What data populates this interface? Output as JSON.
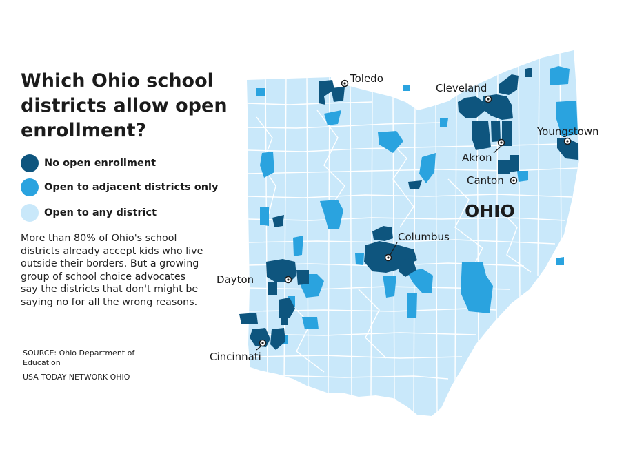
{
  "title": "Which Ohio school districts allow open enrollment?",
  "legend": [
    {
      "label": "No open enrollment",
      "color": "#0e557e"
    },
    {
      "label": "Open to adjacent districts only",
      "color": "#2aa3df"
    },
    {
      "label": "Open to any district",
      "color": "#c9e8fa"
    }
  ],
  "description": "More than 80% of Ohio's school districts already accept kids who live outside their borders. But a growing group of school choice advocates say the districts that don't might be saying no for all the wrong reasons.",
  "source": "SOURCE: Ohio Department of Education",
  "credit": "USA TODAY NETWORK OHIO",
  "map": {
    "state_label": "OHIO",
    "cities": [
      "Toledo",
      "Cleveland",
      "Youngstown",
      "Akron",
      "Canton",
      "Columbus",
      "Dayton",
      "Cincinnati"
    ],
    "colors": {
      "border": "#ffffff",
      "marker": "#1b1b1b"
    }
  }
}
